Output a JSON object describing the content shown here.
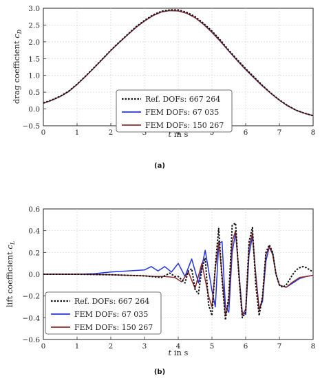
{
  "colors": {
    "ref": "#111111",
    "fem_coarse": "#2233dd",
    "fem_fine": "#8b2b2b",
    "grid": "#cfd8e2"
  },
  "chart_data": [
    {
      "type": "line",
      "panel_label": "(a)",
      "xlabel_var": "t",
      "xlabel_unit": " in s",
      "ylabel_text": "drag coefficient ",
      "ylabel_var": "c",
      "ylabel_sub": "D",
      "xlim": [
        0,
        8
      ],
      "ylim": [
        -0.5,
        3.0
      ],
      "xticks": [
        "0",
        "1",
        "2",
        "3",
        "4",
        "5",
        "6",
        "7",
        "8"
      ],
      "yticks": [
        "−0.5",
        "0.0",
        "0.5",
        "1.0",
        "1.5",
        "2.0",
        "2.5",
        "3.0"
      ],
      "xtick_values": [
        0,
        1,
        2,
        3,
        4,
        5,
        6,
        7,
        8
      ],
      "ytick_values": [
        -0.5,
        0,
        0.5,
        1,
        1.5,
        2,
        2.5,
        3
      ],
      "legend_position": "lower-center",
      "series": [
        {
          "name": "Ref. DOFs: 667 264",
          "style": "dotted",
          "color_key": "ref",
          "x": [
            0,
            0.25,
            0.5,
            0.75,
            1,
            1.25,
            1.5,
            1.75,
            2,
            2.25,
            2.5,
            2.75,
            3,
            3.25,
            3.5,
            3.75,
            4,
            4.25,
            4.5,
            4.75,
            5,
            5.25,
            5.5,
            5.75,
            6,
            6.25,
            6.5,
            6.75,
            7,
            7.25,
            7.5,
            7.75,
            8
          ],
          "y": [
            0.18,
            0.27,
            0.38,
            0.53,
            0.74,
            0.98,
            1.23,
            1.49,
            1.75,
            1.99,
            2.22,
            2.45,
            2.64,
            2.8,
            2.91,
            2.95,
            2.95,
            2.88,
            2.75,
            2.55,
            2.32,
            2.05,
            1.75,
            1.47,
            1.2,
            0.95,
            0.7,
            0.47,
            0.27,
            0.1,
            -0.04,
            -0.13,
            -0.2
          ]
        },
        {
          "name": "FEM DOFs: 67 035",
          "style": "solid",
          "color_key": "fem_coarse",
          "x": [
            0,
            0.25,
            0.5,
            0.75,
            1,
            1.25,
            1.5,
            1.75,
            2,
            2.25,
            2.5,
            2.75,
            3,
            3.25,
            3.5,
            3.75,
            4,
            4.25,
            4.5,
            4.75,
            5,
            5.25,
            5.5,
            5.75,
            6,
            6.25,
            6.5,
            6.75,
            7,
            7.25,
            7.5,
            7.75,
            8
          ],
          "y": [
            0.17,
            0.26,
            0.37,
            0.52,
            0.73,
            0.97,
            1.22,
            1.48,
            1.74,
            1.98,
            2.21,
            2.43,
            2.62,
            2.78,
            2.89,
            2.93,
            2.92,
            2.85,
            2.72,
            2.52,
            2.28,
            2.01,
            1.72,
            1.44,
            1.17,
            0.92,
            0.68,
            0.46,
            0.26,
            0.09,
            -0.04,
            -0.13,
            -0.2
          ]
        },
        {
          "name": "FEM DOFs: 150 267",
          "style": "solid",
          "color_key": "fem_fine",
          "x": [
            0,
            0.25,
            0.5,
            0.75,
            1,
            1.25,
            1.5,
            1.75,
            2,
            2.25,
            2.5,
            2.75,
            3,
            3.25,
            3.5,
            3.75,
            4,
            4.25,
            4.5,
            4.75,
            5,
            5.25,
            5.5,
            5.75,
            6,
            6.25,
            6.5,
            6.75,
            7,
            7.25,
            7.5,
            7.75,
            8
          ],
          "y": [
            0.17,
            0.26,
            0.37,
            0.52,
            0.73,
            0.97,
            1.22,
            1.48,
            1.74,
            1.98,
            2.21,
            2.43,
            2.62,
            2.78,
            2.89,
            2.93,
            2.92,
            2.85,
            2.72,
            2.52,
            2.29,
            2.02,
            1.73,
            1.45,
            1.18,
            0.93,
            0.69,
            0.46,
            0.26,
            0.09,
            -0.04,
            -0.13,
            -0.2
          ]
        }
      ]
    },
    {
      "type": "line",
      "panel_label": "(b)",
      "xlabel_var": "t",
      "xlabel_unit": " in s",
      "ylabel_text": "lift coefficient ",
      "ylabel_var": "c",
      "ylabel_sub": "L",
      "xlim": [
        0,
        8
      ],
      "ylim": [
        -0.6,
        0.6
      ],
      "xticks": [
        "0",
        "1",
        "2",
        "3",
        "4",
        "5",
        "6",
        "7",
        "8"
      ],
      "yticks": [
        "−0.6",
        "−0.4",
        "−0.2",
        "0.0",
        "0.2",
        "0.4",
        "0.6"
      ],
      "xtick_values": [
        0,
        1,
        2,
        3,
        4,
        5,
        6,
        7,
        8
      ],
      "ytick_values": [
        -0.6,
        -0.4,
        -0.2,
        0,
        0.2,
        0.4,
        0.6
      ],
      "legend_position": "lower-left",
      "series": [
        {
          "name": "Ref. DOFs: 667 264",
          "style": "dotted",
          "color_key": "ref",
          "x": [
            0,
            1,
            2,
            2.5,
            3,
            3.5,
            3.75,
            3.9,
            4.0,
            4.1,
            4.2,
            4.3,
            4.4,
            4.5,
            4.6,
            4.7,
            4.8,
            4.9,
            5.0,
            5.1,
            5.2,
            5.3,
            5.4,
            5.5,
            5.6,
            5.7,
            5.8,
            5.9,
            6.0,
            6.1,
            6.2,
            6.3,
            6.4,
            6.5,
            6.6,
            6.7,
            6.8,
            6.9,
            7.0,
            7.1,
            7.2,
            7.3,
            7.4,
            7.5,
            7.6,
            7.7,
            7.8,
            7.9,
            8.0
          ],
          "y": [
            0,
            0,
            -0.005,
            -0.01,
            -0.015,
            -0.03,
            0.01,
            -0.02,
            -0.02,
            -0.05,
            -0.08,
            0.03,
            0.05,
            -0.14,
            -0.18,
            0.05,
            0.15,
            -0.28,
            -0.38,
            0.08,
            0.42,
            -0.05,
            -0.42,
            -0.2,
            0.45,
            0.47,
            -0.02,
            -0.4,
            -0.35,
            0.3,
            0.43,
            -0.1,
            -0.38,
            -0.2,
            0.2,
            0.27,
            0.2,
            0.0,
            -0.1,
            -0.12,
            -0.1,
            -0.05,
            0.0,
            0.04,
            0.06,
            0.07,
            0.06,
            0.04,
            0.02
          ]
        },
        {
          "name": "FEM DOFs: 67 035",
          "style": "solid",
          "color_key": "fem_coarse",
          "x": [
            0,
            1,
            1.5,
            2,
            2.5,
            3,
            3.2,
            3.4,
            3.6,
            3.8,
            4.0,
            4.2,
            4.4,
            4.6,
            4.8,
            5.0,
            5.1,
            5.2,
            5.3,
            5.4,
            5.5,
            5.6,
            5.7,
            5.8,
            5.9,
            6.0,
            6.1,
            6.2,
            6.3,
            6.4,
            6.5,
            6.6,
            6.7,
            6.8,
            6.9,
            7.0,
            7.2,
            7.4,
            7.6,
            7.8,
            8.0
          ],
          "y": [
            0,
            0,
            0.005,
            0.02,
            0.03,
            0.04,
            0.07,
            0.03,
            0.07,
            0.02,
            0.1,
            -0.02,
            0.14,
            -0.08,
            0.22,
            -0.15,
            -0.3,
            0.28,
            0.3,
            -0.3,
            -0.35,
            0.2,
            0.38,
            0.02,
            -0.35,
            -0.37,
            0.18,
            0.35,
            0.0,
            -0.32,
            -0.25,
            0.12,
            0.25,
            0.2,
            0.0,
            -0.1,
            -0.12,
            -0.08,
            -0.04,
            -0.02,
            -0.01
          ]
        },
        {
          "name": "FEM DOFs: 150 267",
          "style": "solid",
          "color_key": "fem_fine",
          "x": [
            0,
            1,
            2,
            2.5,
            3,
            3.3,
            3.6,
            3.9,
            4.1,
            4.3,
            4.5,
            4.7,
            4.9,
            5.0,
            5.1,
            5.2,
            5.3,
            5.4,
            5.5,
            5.6,
            5.7,
            5.8,
            5.9,
            6.0,
            6.1,
            6.2,
            6.3,
            6.4,
            6.5,
            6.6,
            6.7,
            6.8,
            6.9,
            7.0,
            7.2,
            7.4,
            7.6,
            7.8,
            8.0
          ],
          "y": [
            0,
            0,
            -0.005,
            -0.01,
            -0.015,
            -0.02,
            -0.02,
            -0.03,
            -0.07,
            0.02,
            -0.13,
            0.1,
            -0.2,
            -0.3,
            0.05,
            0.3,
            0.0,
            -0.38,
            -0.25,
            0.3,
            0.4,
            0.0,
            -0.38,
            -0.32,
            0.25,
            0.38,
            -0.02,
            -0.33,
            -0.22,
            0.18,
            0.25,
            0.18,
            0.0,
            -0.1,
            -0.12,
            -0.07,
            -0.03,
            -0.02,
            -0.01
          ]
        }
      ]
    }
  ]
}
